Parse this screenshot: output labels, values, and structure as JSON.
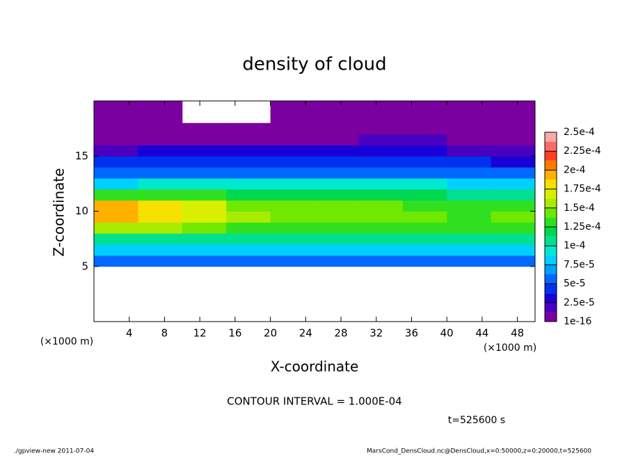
{
  "chart_data": {
    "type": "heatmap",
    "title": "density of cloud",
    "x_label": "X-coordinate",
    "y_label": "Z-coordinate",
    "x_unit": "(×1000 m)",
    "contour_note": "CONTOUR INTERVAL = 1.000E-04",
    "time_note": "t=525600 s",
    "footer_left": "./gpview-new  2011-07-04",
    "footer_right": "MarsCond_DensCloud.nc@DensCloud,x=0:50000,z=0:20000,t=525600",
    "xlim": [
      0,
      50
    ],
    "xticks": [
      4,
      8,
      12,
      16,
      20,
      24,
      28,
      32,
      36,
      40,
      44,
      48
    ],
    "ylim": [
      0,
      20
    ],
    "yticks": [
      5,
      10,
      15
    ],
    "x": [
      2.5,
      7.5,
      12.5,
      17.5,
      22.5,
      27.5,
      32.5,
      37.5,
      42.5,
      47.5
    ],
    "y": [
      0.5,
      1.5,
      2.5,
      3.5,
      4.5,
      5.5,
      6.5,
      7.5,
      8.5,
      9.5,
      10.5,
      11.5,
      12.5,
      13.5,
      14.5,
      15.5,
      16.5,
      17.5,
      18.5,
      19.5
    ],
    "z": [
      [
        null,
        null,
        null,
        null,
        null,
        null,
        null,
        null,
        null,
        null
      ],
      [
        null,
        null,
        null,
        null,
        null,
        null,
        null,
        null,
        null,
        null
      ],
      [
        null,
        null,
        null,
        null,
        null,
        null,
        null,
        null,
        null,
        null
      ],
      [
        null,
        null,
        null,
        null,
        null,
        null,
        null,
        null,
        null,
        null
      ],
      [
        null,
        null,
        null,
        null,
        null,
        null,
        null,
        null,
        null,
        null
      ],
      [
        5e-05,
        5e-05,
        5e-05,
        5e-05,
        5e-05,
        5e-05,
        5e-05,
        5e-05,
        5e-05,
        5e-05
      ],
      [
        8e-05,
        8e-05,
        8e-05,
        8e-05,
        8e-05,
        8e-05,
        8e-05,
        8e-05,
        8e-05,
        8e-05
      ],
      [
        0.00011,
        0.00011,
        0.00011,
        0.00011,
        0.00011,
        0.00011,
        0.00011,
        0.00011,
        0.00011,
        0.00011
      ],
      [
        0.00015,
        0.00015,
        0.000145,
        0.00013,
        0.00013,
        0.00013,
        0.00013,
        0.00013,
        0.00013,
        0.00013
      ],
      [
        0.00019,
        0.000185,
        0.00017,
        0.00015,
        0.00014,
        0.00014,
        0.000145,
        0.00014,
        0.000135,
        0.00014
      ],
      [
        0.00019,
        0.00018,
        0.000165,
        0.000145,
        0.00014,
        0.00014,
        0.00014,
        0.000135,
        0.00013,
        0.000135
      ],
      [
        0.00013,
        0.00013,
        0.00013,
        0.00012,
        0.00012,
        0.00012,
        0.00012,
        0.000115,
        0.00011,
        0.00011
      ],
      [
        8e-05,
        9e-05,
        9e-05,
        9e-05,
        9e-05,
        9e-05,
        9e-05,
        9e-05,
        8e-05,
        8e-05
      ],
      [
        6e-05,
        6e-05,
        6e-05,
        6e-05,
        6e-05,
        6e-05,
        6e-05,
        6e-05,
        6e-05,
        5e-05
      ],
      [
        4e-05,
        4e-05,
        4e-05,
        4e-05,
        4e-05,
        4e-05,
        4e-05,
        4e-05,
        4e-05,
        3e-05
      ],
      [
        2e-05,
        2.5e-05,
        2.5e-05,
        2.5e-05,
        2.5e-05,
        2.5e-05,
        3e-05,
        3e-05,
        2e-05,
        1.5e-05
      ],
      [
        1e-05,
        1e-05,
        1e-05,
        1e-05,
        1e-05,
        1e-05,
        2e-05,
        2e-05,
        1e-05,
        1e-05
      ],
      [
        5e-06,
        5e-06,
        5e-06,
        5e-06,
        5e-06,
        5e-06,
        5e-06,
        5e-06,
        5e-06,
        5e-06
      ],
      [
        5e-06,
        5e-06,
        null,
        null,
        5e-06,
        5e-06,
        5e-06,
        5e-06,
        5e-06,
        5e-06
      ],
      [
        5e-06,
        5e-06,
        null,
        null,
        5e-06,
        5e-06,
        5e-06,
        5e-06,
        5e-06,
        5e-06
      ]
    ],
    "levels": [
      1e-16,
      1.25e-05,
      2.5e-05,
      3.75e-05,
      5e-05,
      6.25e-05,
      7.5e-05,
      8.75e-05,
      0.0001,
      0.0001125,
      0.000125,
      0.0001375,
      0.00015,
      0.0001625,
      0.000175,
      0.0001875,
      0.0002,
      0.0002125,
      0.000225,
      0.0002375,
      0.00025
    ],
    "colors": [
      "#7b00a0",
      "#4a00c0",
      "#1a00d8",
      "#0030f0",
      "#0068ff",
      "#00a0ff",
      "#00d0ff",
      "#00e8d0",
      "#00e090",
      "#00d850",
      "#30e020",
      "#70e800",
      "#a8ec00",
      "#d8f000",
      "#f8e000",
      "#ffb000",
      "#ff7800",
      "#ff4020",
      "#ff6868",
      "#ffa8a8"
    ],
    "colorbar_ticks": [
      {
        "value": 1e-16,
        "label": "1e-16"
      },
      {
        "value": 2.5e-05,
        "label": "2.5e-5"
      },
      {
        "value": 5e-05,
        "label": "5e-5"
      },
      {
        "value": 7.5e-05,
        "label": "7.5e-5"
      },
      {
        "value": 0.0001,
        "label": "1e-4"
      },
      {
        "value": 0.000125,
        "label": "1.25e-4"
      },
      {
        "value": 0.00015,
        "label": "1.5e-4"
      },
      {
        "value": 0.000175,
        "label": "1.75e-4"
      },
      {
        "value": 0.0002,
        "label": "2e-4"
      },
      {
        "value": 0.000225,
        "label": "2.25e-4"
      },
      {
        "value": 0.00025,
        "label": "2.5e-4"
      }
    ]
  }
}
